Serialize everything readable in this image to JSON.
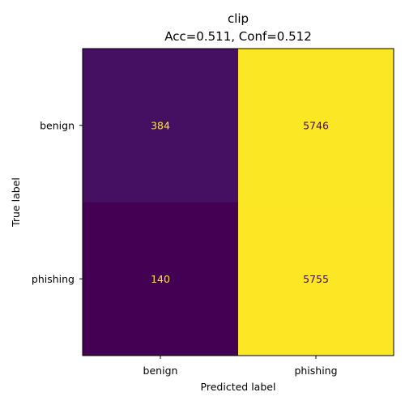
{
  "chart_data": {
    "type": "heatmap",
    "title": "clip",
    "subtitle": "Acc=0.511, Conf=0.512",
    "xlabel": "Predicted label",
    "ylabel": "True label",
    "x_categories": [
      "benign",
      "phishing"
    ],
    "y_categories": [
      "benign",
      "phishing"
    ],
    "values": [
      [
        384,
        5746
      ],
      [
        140,
        5755
      ]
    ],
    "colormap": "viridis",
    "grid": false,
    "legend": "none"
  },
  "colors": {
    "cell_dark_low": "#440154",
    "cell_dark_mid": "#46116b",
    "cell_bright": "#fde725",
    "text_on_dark": "#fde725",
    "text_on_bright": "#440154"
  }
}
